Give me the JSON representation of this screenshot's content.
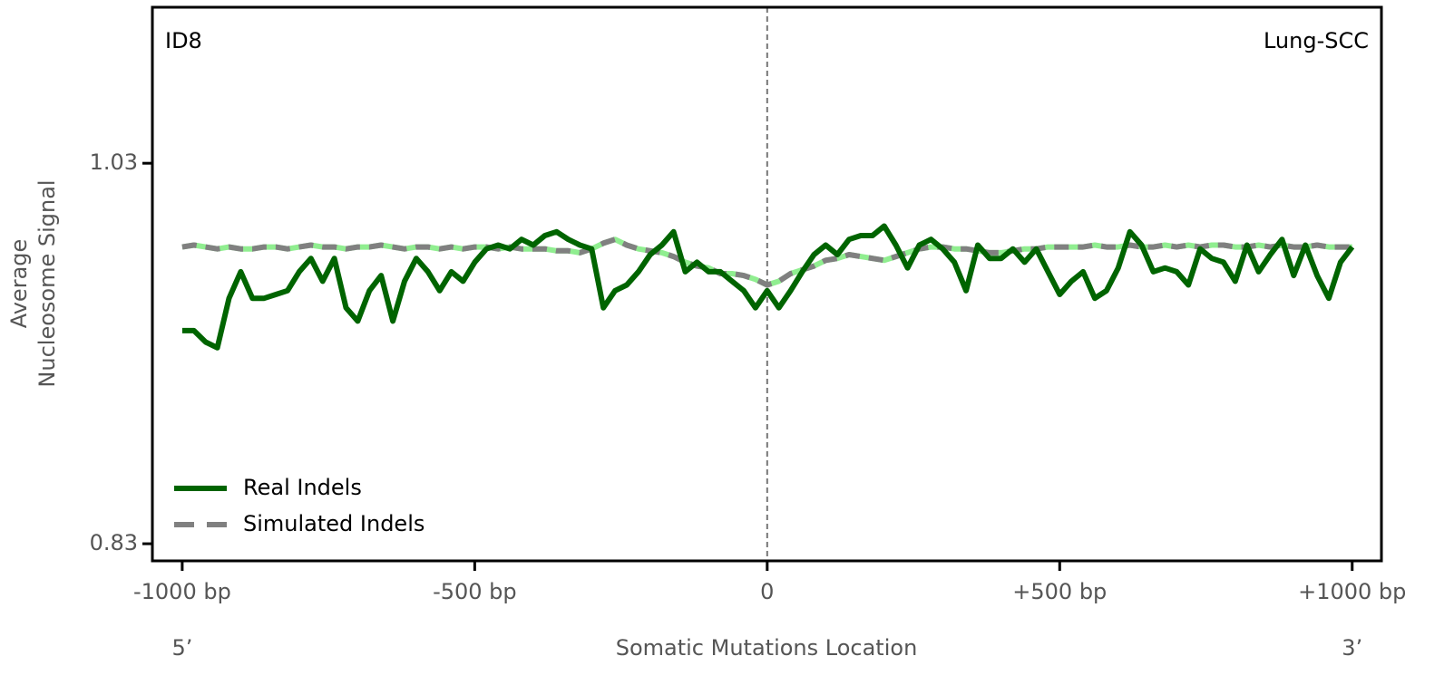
{
  "chart_data": {
    "type": "line",
    "title_left": "ID8",
    "title_right": "Lung-SCC",
    "xlabel": "Somatic Mutations Location",
    "ylabel": [
      "Average",
      "Nucleosome Signal"
    ],
    "x_end_labels": [
      "5’",
      "3’"
    ],
    "x": [
      -1000,
      -980,
      -960,
      -940,
      -920,
      -900,
      -880,
      -860,
      -840,
      -820,
      -800,
      -780,
      -760,
      -740,
      -720,
      -700,
      -680,
      -660,
      -640,
      -620,
      -600,
      -580,
      -560,
      -540,
      -520,
      -500,
      -480,
      -460,
      -440,
      -420,
      -400,
      -380,
      -360,
      -340,
      -320,
      -300,
      -280,
      -260,
      -240,
      -220,
      -200,
      -180,
      -160,
      -140,
      -120,
      -100,
      -80,
      -60,
      -40,
      -20,
      0,
      20,
      40,
      60,
      80,
      100,
      120,
      140,
      160,
      180,
      200,
      220,
      240,
      260,
      280,
      300,
      320,
      340,
      360,
      380,
      400,
      420,
      440,
      460,
      480,
      500,
      520,
      540,
      560,
      580,
      600,
      620,
      640,
      660,
      680,
      700,
      720,
      740,
      760,
      780,
      800,
      820,
      840,
      860,
      880,
      900,
      920,
      940,
      960,
      980,
      1000
    ],
    "series": [
      {
        "name": "Real Indels",
        "color": "#006400",
        "dashed": false,
        "values": [
          0.942,
          0.942,
          0.936,
          0.933,
          0.959,
          0.973,
          0.959,
          0.959,
          0.961,
          0.963,
          0.973,
          0.98,
          0.968,
          0.98,
          0.954,
          0.947,
          0.963,
          0.971,
          0.947,
          0.968,
          0.98,
          0.973,
          0.963,
          0.973,
          0.968,
          0.978,
          0.985,
          0.987,
          0.985,
          0.99,
          0.987,
          0.992,
          0.994,
          0.99,
          0.987,
          0.985,
          0.954,
          0.963,
          0.966,
          0.973,
          0.982,
          0.987,
          0.994,
          0.973,
          0.978,
          0.973,
          0.973,
          0.968,
          0.963,
          0.954,
          0.963,
          0.954,
          0.963,
          0.973,
          0.982,
          0.987,
          0.982,
          0.99,
          0.992,
          0.992,
          0.997,
          0.987,
          0.975,
          0.987,
          0.99,
          0.985,
          0.978,
          0.963,
          0.987,
          0.98,
          0.98,
          0.985,
          0.978,
          0.985,
          0.973,
          0.961,
          0.968,
          0.973,
          0.959,
          0.963,
          0.975,
          0.994,
          0.987,
          0.973,
          0.975,
          0.973,
          0.966,
          0.985,
          0.98,
          0.978,
          0.968,
          0.987,
          0.973,
          0.982,
          0.99,
          0.971,
          0.987,
          0.971,
          0.959,
          0.978,
          0.986
        ]
      },
      {
        "name": "Simulated Indels",
        "color": "#808080",
        "underlay_color": "#90ee90",
        "dashed": true,
        "values": [
          0.986,
          0.987,
          0.986,
          0.985,
          0.986,
          0.985,
          0.985,
          0.986,
          0.986,
          0.985,
          0.986,
          0.987,
          0.986,
          0.986,
          0.985,
          0.986,
          0.986,
          0.987,
          0.986,
          0.985,
          0.986,
          0.986,
          0.985,
          0.986,
          0.985,
          0.986,
          0.986,
          0.985,
          0.986,
          0.985,
          0.985,
          0.985,
          0.984,
          0.984,
          0.983,
          0.985,
          0.988,
          0.99,
          0.987,
          0.985,
          0.984,
          0.983,
          0.981,
          0.978,
          0.976,
          0.975,
          0.972,
          0.972,
          0.971,
          0.969,
          0.966,
          0.968,
          0.972,
          0.974,
          0.976,
          0.979,
          0.98,
          0.982,
          0.981,
          0.98,
          0.979,
          0.981,
          0.983,
          0.985,
          0.986,
          0.986,
          0.985,
          0.985,
          0.984,
          0.983,
          0.983,
          0.984,
          0.985,
          0.985,
          0.986,
          0.986,
          0.986,
          0.986,
          0.987,
          0.986,
          0.986,
          0.987,
          0.986,
          0.986,
          0.987,
          0.986,
          0.987,
          0.986,
          0.987,
          0.987,
          0.986,
          0.986,
          0.987,
          0.986,
          0.987,
          0.986,
          0.986,
          0.987,
          0.986,
          0.986,
          0.986
        ]
      }
    ],
    "xlim": [
      -1051,
      1050
    ],
    "xticks": [
      {
        "value": -1000,
        "label": "-1000 bp"
      },
      {
        "value": -500,
        "label": "-500 bp"
      },
      0,
      {
        "value": 500,
        "label": "+500 bp"
      },
      {
        "value": 1000,
        "label": "+1000 bp"
      }
    ],
    "ylim": [
      0.821,
      1.112
    ],
    "yticks": [
      0.83,
      1.03
    ],
    "vline": 0,
    "legend": "lower left",
    "grid": false
  }
}
